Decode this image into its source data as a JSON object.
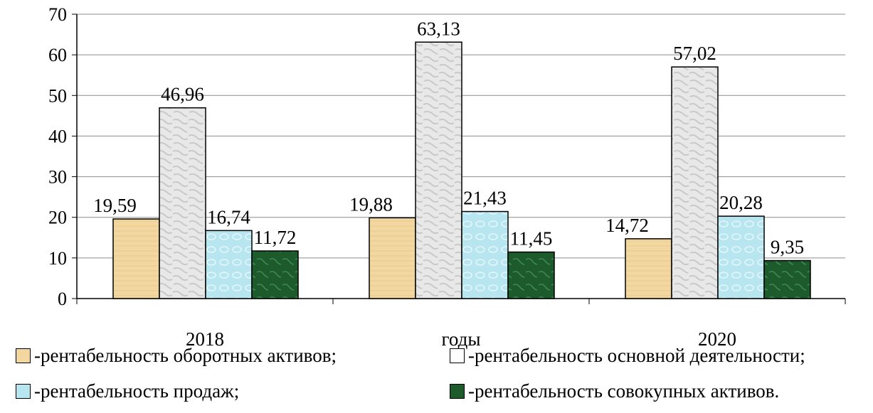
{
  "chart_data": {
    "type": "bar",
    "categories": [
      "2018",
      "годы",
      "2020"
    ],
    "series": [
      {
        "name": "-рентабельность оборотных активов;",
        "values": [
          19.59,
          19.88,
          14.72
        ],
        "labels": [
          "19,59",
          "19,88",
          "14,72"
        ],
        "color": "#f2d8a0"
      },
      {
        "name": "-рентабельность основной деятельности;",
        "values": [
          46.96,
          63.13,
          57.02
        ],
        "labels": [
          "46,96",
          "63,13",
          "57,02"
        ],
        "color": "#e3e3e3"
      },
      {
        "name": "-рентабельность продаж;",
        "values": [
          16.74,
          21.43,
          20.28
        ],
        "labels": [
          "16,74",
          "21,43",
          "20,28"
        ],
        "color": "#b7e6f0"
      },
      {
        "name": "-рентабельность совокупных активов.",
        "values": [
          11.72,
          11.45,
          9.35
        ],
        "labels": [
          "11,72",
          "11,45",
          "9,35"
        ],
        "color": "#1d5a2c"
      }
    ],
    "yticks": [
      "0",
      "10",
      "20",
      "30",
      "40",
      "50",
      "60",
      "70"
    ],
    "ylim": [
      0,
      70
    ],
    "grid": true,
    "legend_position": "bottom"
  }
}
